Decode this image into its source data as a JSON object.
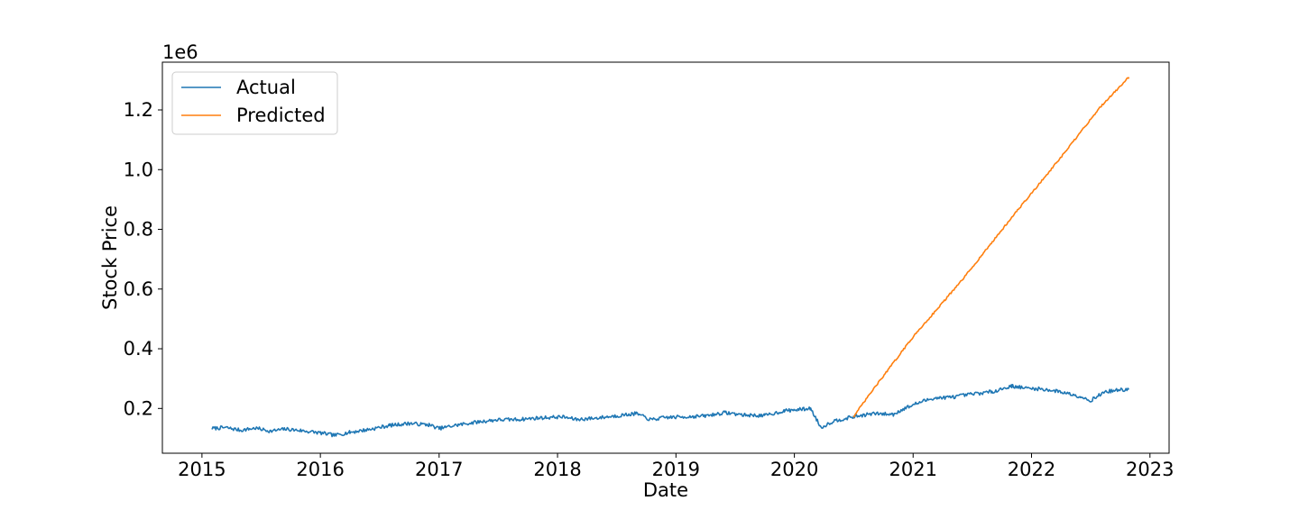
{
  "chart_data": {
    "type": "line",
    "title": "",
    "xlabel": "Date",
    "ylabel": "Stock Price",
    "offset_text": "1e6",
    "xlim": [
      "2014-09-01",
      "2023-03-01"
    ],
    "ylim": [
      0.05,
      1.36
    ],
    "x_ticks": [
      {
        "date": "2015-01-01",
        "label": "2015"
      },
      {
        "date": "2016-01-01",
        "label": "2016"
      },
      {
        "date": "2017-01-01",
        "label": "2017"
      },
      {
        "date": "2018-01-01",
        "label": "2018"
      },
      {
        "date": "2019-01-01",
        "label": "2019"
      },
      {
        "date": "2020-01-01",
        "label": "2020"
      },
      {
        "date": "2021-01-01",
        "label": "2021"
      },
      {
        "date": "2022-01-01",
        "label": "2022"
      },
      {
        "date": "2023-01-01",
        "label": "2023"
      }
    ],
    "y_ticks": [
      {
        "value": 0.2,
        "label": "0.2"
      },
      {
        "value": 0.4,
        "label": "0.4"
      },
      {
        "value": 0.6,
        "label": "0.6"
      },
      {
        "value": 0.8,
        "label": "0.8"
      },
      {
        "value": 1.0,
        "label": "1.0"
      },
      {
        "value": 1.2,
        "label": "1.2"
      }
    ],
    "legend_position": "upper-left",
    "grid": false,
    "series": [
      {
        "name": "Actual",
        "color": "#1f77b4",
        "points": [
          [
            "2015-02-01",
            0.133
          ],
          [
            "2015-03-15",
            0.136
          ],
          [
            "2015-05-01",
            0.127
          ],
          [
            "2015-06-15",
            0.134
          ],
          [
            "2015-08-01",
            0.124
          ],
          [
            "2015-09-15",
            0.131
          ],
          [
            "2015-11-01",
            0.126
          ],
          [
            "2016-01-01",
            0.118
          ],
          [
            "2016-02-15",
            0.11
          ],
          [
            "2016-04-01",
            0.12
          ],
          [
            "2016-06-01",
            0.13
          ],
          [
            "2016-08-01",
            0.143
          ],
          [
            "2016-10-01",
            0.15
          ],
          [
            "2016-12-01",
            0.145
          ],
          [
            "2017-01-01",
            0.133
          ],
          [
            "2017-03-01",
            0.145
          ],
          [
            "2017-05-01",
            0.155
          ],
          [
            "2017-07-01",
            0.162
          ],
          [
            "2017-09-01",
            0.163
          ],
          [
            "2017-11-01",
            0.168
          ],
          [
            "2018-01-15",
            0.172
          ],
          [
            "2018-03-01",
            0.163
          ],
          [
            "2018-05-01",
            0.168
          ],
          [
            "2018-07-01",
            0.175
          ],
          [
            "2018-09-01",
            0.183
          ],
          [
            "2018-10-15",
            0.162
          ],
          [
            "2018-12-01",
            0.17
          ],
          [
            "2019-02-01",
            0.172
          ],
          [
            "2019-04-01",
            0.175
          ],
          [
            "2019-06-01",
            0.186
          ],
          [
            "2019-08-01",
            0.178
          ],
          [
            "2019-10-01",
            0.176
          ],
          [
            "2019-12-01",
            0.192
          ],
          [
            "2020-02-01",
            0.198
          ],
          [
            "2020-02-20",
            0.2
          ],
          [
            "2020-03-23",
            0.136
          ],
          [
            "2020-05-01",
            0.158
          ],
          [
            "2020-07-01",
            0.172
          ],
          [
            "2020-09-01",
            0.183
          ],
          [
            "2020-11-01",
            0.18
          ],
          [
            "2020-12-01",
            0.198
          ],
          [
            "2021-01-15",
            0.218
          ],
          [
            "2021-03-01",
            0.234
          ],
          [
            "2021-05-01",
            0.238
          ],
          [
            "2021-07-01",
            0.248
          ],
          [
            "2021-09-01",
            0.256
          ],
          [
            "2021-11-01",
            0.275
          ],
          [
            "2021-12-15",
            0.268
          ],
          [
            "2022-02-01",
            0.265
          ],
          [
            "2022-04-01",
            0.256
          ],
          [
            "2022-06-01",
            0.24
          ],
          [
            "2022-07-01",
            0.226
          ],
          [
            "2022-08-15",
            0.256
          ],
          [
            "2022-10-01",
            0.262
          ],
          [
            "2022-10-28",
            0.263
          ]
        ]
      },
      {
        "name": "Predicted",
        "color": "#ff7f0e",
        "points": [
          [
            "2020-07-01",
            0.172
          ],
          [
            "2020-09-01",
            0.265
          ],
          [
            "2021-01-01",
            0.44
          ],
          [
            "2021-06-01",
            0.63
          ],
          [
            "2021-11-01",
            0.84
          ],
          [
            "2022-04-01",
            1.04
          ],
          [
            "2022-08-01",
            1.21
          ],
          [
            "2022-10-28",
            1.31
          ]
        ]
      }
    ]
  }
}
